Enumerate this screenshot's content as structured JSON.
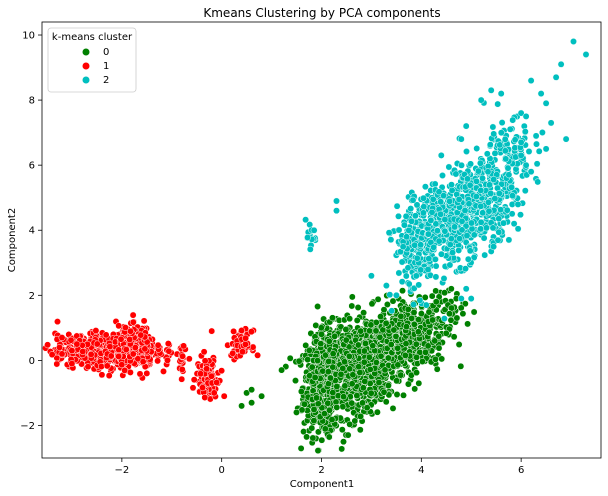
{
  "chart_data": {
    "type": "scatter",
    "title": "Kmeans Clustering by PCA components",
    "xlabel": "Component1",
    "ylabel": "Component2",
    "xlim": [
      -3.6,
      7.6
    ],
    "ylim": [
      -3.0,
      10.4
    ],
    "xticks": [
      -2,
      0,
      2,
      4,
      6
    ],
    "yticks": [
      -2,
      0,
      2,
      4,
      6,
      8,
      10
    ],
    "grid": false,
    "legend": {
      "title": "k-means cluster",
      "placement": "top-left"
    },
    "series": [
      {
        "name": "0",
        "color": "#008000",
        "blobs": [
          {
            "cx": 2.0,
            "cy": -0.8,
            "sx": 0.18,
            "sy": 0.75,
            "n": 500
          },
          {
            "cx": 2.6,
            "cy": -0.3,
            "sx": 0.35,
            "sy": 0.7,
            "n": 700
          },
          {
            "cx": 3.2,
            "cy": 0.3,
            "sx": 0.4,
            "sy": 0.55,
            "n": 500
          },
          {
            "cx": 3.8,
            "cy": 0.9,
            "sx": 0.35,
            "sy": 0.5,
            "n": 250
          },
          {
            "cx": 4.4,
            "cy": 1.5,
            "sx": 0.25,
            "sy": 0.35,
            "n": 60
          }
        ],
        "points": [
          [
            0.5,
            -1.0
          ],
          [
            0.6,
            -1.3
          ],
          [
            0.8,
            -1.1
          ],
          [
            0.4,
            -1.4
          ],
          [
            0.6,
            -0.9
          ],
          [
            1.2,
            -0.3
          ],
          [
            1.5,
            -1.6
          ],
          [
            4.6,
            2.2
          ],
          [
            4.3,
            1.8
          ],
          [
            4.7,
            1.9
          ]
        ]
      },
      {
        "name": "1",
        "color": "#ff0000",
        "blobs": [
          {
            "cx": -2.3,
            "cy": 0.3,
            "sx": 0.5,
            "sy": 0.25,
            "n": 600
          },
          {
            "cx": -1.7,
            "cy": 0.4,
            "sx": 0.18,
            "sy": 0.3,
            "n": 300
          },
          {
            "cx": -0.3,
            "cy": -0.5,
            "sx": 0.1,
            "sy": 0.3,
            "n": 130
          },
          {
            "cx": 0.4,
            "cy": 0.5,
            "sx": 0.1,
            "sy": 0.2,
            "n": 70
          },
          {
            "cx": -0.8,
            "cy": 0.0,
            "sx": 0.03,
            "sy": 0.25,
            "n": 20
          }
        ],
        "points": [
          [
            -3.2,
            0.7
          ],
          [
            -3.25,
            0.4
          ],
          [
            -3.2,
            0.2
          ],
          [
            -3.0,
            0.3
          ],
          [
            -3.0,
            -0.1
          ],
          [
            -2.9,
            0.5
          ],
          [
            -1.5,
            -0.4
          ],
          [
            -0.2,
            0.9
          ],
          [
            -0.15,
            -1.0
          ],
          [
            0.05,
            -1.1
          ]
        ]
      },
      {
        "name": "2",
        "color": "#00bfbf",
        "blobs": [
          {
            "cx": 3.9,
            "cy": 3.4,
            "sx": 0.22,
            "sy": 0.7,
            "n": 200
          },
          {
            "cx": 4.6,
            "cy": 4.2,
            "sx": 0.35,
            "sy": 0.6,
            "n": 400
          },
          {
            "cx": 5.2,
            "cy": 5.0,
            "sx": 0.35,
            "sy": 0.6,
            "n": 300
          },
          {
            "cx": 5.7,
            "cy": 6.2,
            "sx": 0.3,
            "sy": 0.6,
            "n": 120
          },
          {
            "cx": 1.75,
            "cy": 3.8,
            "sx": 0.07,
            "sy": 0.2,
            "n": 15
          }
        ],
        "points": [
          [
            7.05,
            9.8
          ],
          [
            7.3,
            9.4
          ],
          [
            6.8,
            9.1
          ],
          [
            6.7,
            8.7
          ],
          [
            6.2,
            8.6
          ],
          [
            6.4,
            8.2
          ],
          [
            6.5,
            7.9
          ],
          [
            6.0,
            7.6
          ],
          [
            6.6,
            7.3
          ],
          [
            6.1,
            7.5
          ],
          [
            6.3,
            6.9
          ],
          [
            6.0,
            6.3
          ],
          [
            6.5,
            6.5
          ],
          [
            6.9,
            6.8
          ],
          [
            6.0,
            6.7
          ],
          [
            5.4,
            8.3
          ],
          [
            5.6,
            8.2
          ],
          [
            5.2,
            8.0
          ],
          [
            4.9,
            7.2
          ],
          [
            4.8,
            6.8
          ],
          [
            4.4,
            6.3
          ],
          [
            3.0,
            2.6
          ],
          [
            3.3,
            2.3
          ],
          [
            3.5,
            2.0
          ],
          [
            4.8,
            1.9
          ],
          [
            4.9,
            2.2
          ],
          [
            5.0,
            1.9
          ],
          [
            4.1,
            1.7
          ],
          [
            2.3,
            4.9
          ],
          [
            2.3,
            4.6
          ],
          [
            6.2,
            5.8
          ],
          [
            6.1,
            6.0
          ]
        ]
      }
    ]
  }
}
